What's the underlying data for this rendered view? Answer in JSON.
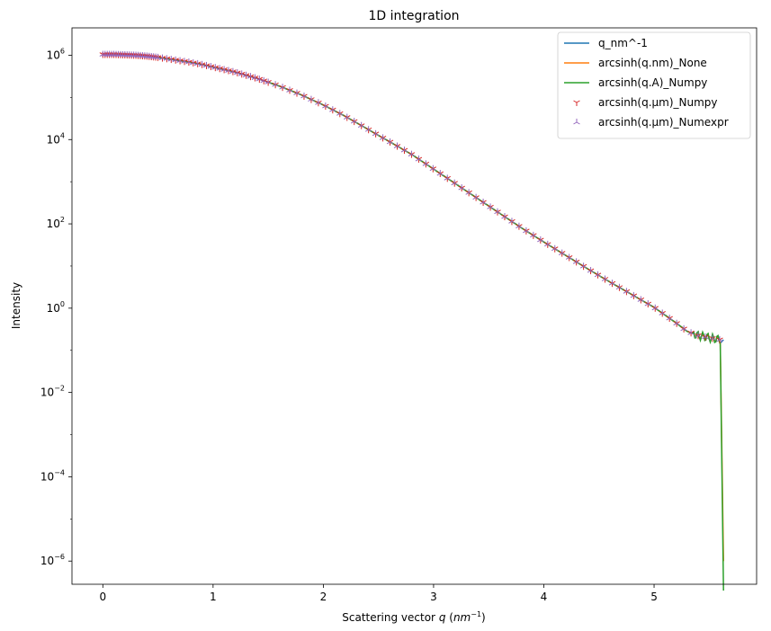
{
  "chart_data": {
    "type": "line",
    "title": "1D integration",
    "xlabel_prefix": "Scattering vector ",
    "xlabel_var": "q",
    "xlabel_unit_open": " (",
    "xlabel_unit_base": "nm",
    "xlabel_unit_exp": "−1",
    "xlabel_unit_close": ")",
    "ylabel": "Intensity",
    "xlim": [
      -0.28,
      5.93
    ],
    "ylim_log10": [
      -6.55,
      6.65
    ],
    "yscale": "log",
    "grid": false,
    "legend_position": "top-right",
    "x_ticks": [
      {
        "value": 0,
        "label": "0"
      },
      {
        "value": 1,
        "label": "1"
      },
      {
        "value": 2,
        "label": "2"
      },
      {
        "value": 3,
        "label": "3"
      },
      {
        "value": 4,
        "label": "4"
      },
      {
        "value": 5,
        "label": "5"
      }
    ],
    "y_ticks": [
      {
        "exp": 6,
        "base": "10",
        "sup": "6"
      },
      {
        "exp": 4,
        "base": "10",
        "sup": "4"
      },
      {
        "exp": 2,
        "base": "10",
        "sup": "2"
      },
      {
        "exp": 0,
        "base": "10",
        "sup": "0"
      },
      {
        "exp": -2,
        "base": "10",
        "sup": "−2"
      },
      {
        "exp": -4,
        "base": "10",
        "sup": "−4"
      },
      {
        "exp": -6,
        "base": "10",
        "sup": "−6"
      }
    ],
    "curve_log10": {
      "x": [
        0.0,
        0.1,
        0.2,
        0.3,
        0.4,
        0.5,
        0.6,
        0.7,
        0.8,
        0.9,
        1.0,
        1.2,
        1.4,
        1.6,
        1.8,
        2.0,
        2.2,
        2.4,
        2.6,
        2.8,
        3.0,
        3.2,
        3.4,
        3.6,
        3.8,
        4.0,
        4.2,
        4.4,
        4.6,
        4.8,
        5.0,
        5.2,
        5.3,
        5.4,
        5.5,
        5.6
      ],
      "y": [
        6.02,
        6.02,
        6.01,
        6.0,
        5.98,
        5.95,
        5.91,
        5.87,
        5.83,
        5.78,
        5.72,
        5.6,
        5.45,
        5.27,
        5.06,
        4.82,
        4.55,
        4.25,
        3.95,
        3.65,
        3.3,
        2.95,
        2.6,
        2.25,
        1.9,
        1.57,
        1.25,
        0.93,
        0.62,
        0.32,
        0.02,
        -0.35,
        -0.55,
        -0.65,
        -0.7,
        -0.75
      ]
    },
    "series": [
      {
        "name": "q_nm^-1",
        "color": "#1f77b4",
        "marker": "line",
        "tail_end": -0.75
      },
      {
        "name": "arcsinh(q.nm)_None",
        "color": "#ff7f0e",
        "marker": "line",
        "tail_end": -6.0
      },
      {
        "name": "arcsinh(q.A)_Numpy",
        "color": "#2ca02c",
        "marker": "line",
        "tail_end": -6.7
      },
      {
        "name": "arcsinh(q.µm)_Numpy",
        "color": "#d62728",
        "marker": "tri_down",
        "tail_end": -0.75
      },
      {
        "name": "arcsinh(q.µm)_Numexpr",
        "color": "#9467bd",
        "marker": "tri_up",
        "tail_end": -0.75
      }
    ]
  }
}
